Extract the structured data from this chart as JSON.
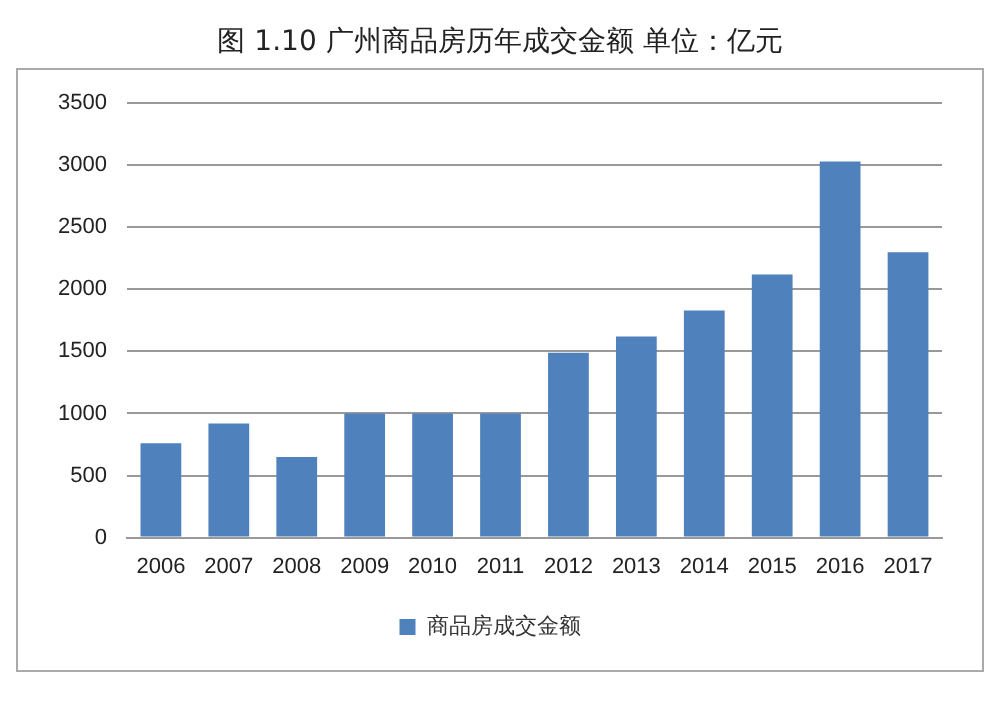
{
  "chart_data": {
    "type": "bar",
    "title": "图 1.10  广州商品房历年成交金额    单位：亿元",
    "categories": [
      "2006",
      "2007",
      "2008",
      "2009",
      "2010",
      "2011",
      "2012",
      "2013",
      "2014",
      "2015",
      "2016",
      "2017"
    ],
    "series": [
      {
        "name": "商品房成交金额",
        "color": "#4f81bd",
        "values": [
          760,
          920,
          650,
          1000,
          1000,
          1000,
          1490,
          1620,
          1830,
          2120,
          3030,
          2300
        ]
      }
    ],
    "ylim": [
      0,
      3500
    ],
    "yticks": [
      0,
      500,
      1000,
      1500,
      2000,
      2500,
      3000,
      3500
    ],
    "grid": "y",
    "legend": "bottom"
  }
}
